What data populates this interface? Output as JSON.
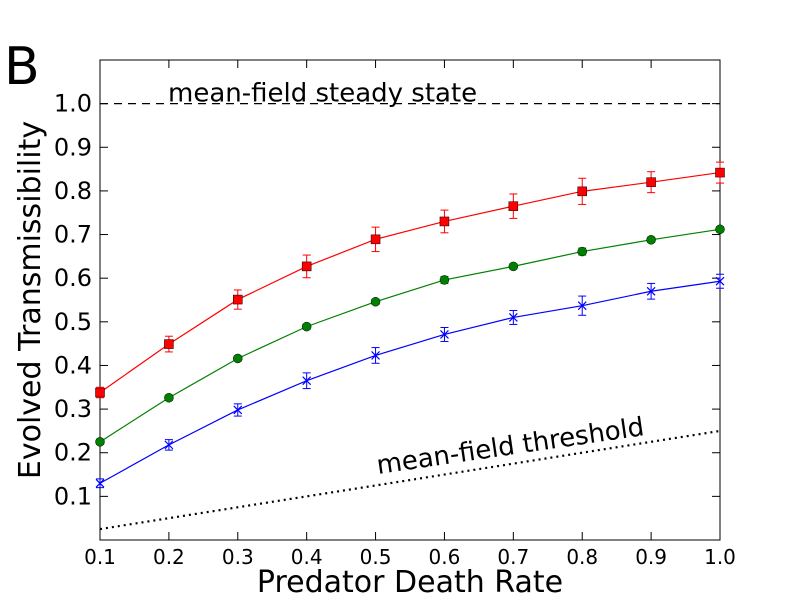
{
  "panel_label": "B",
  "chart_data": {
    "type": "line",
    "title": "",
    "xlabel": "Predator Death Rate",
    "ylabel": "Evolved Transmissibility",
    "xlim": [
      0.1,
      1.0
    ],
    "ylim": [
      0.0,
      1.1
    ],
    "x": [
      0.1,
      0.2,
      0.3,
      0.4,
      0.5,
      0.6,
      0.7,
      0.8,
      0.9,
      1.0
    ],
    "xticks": [
      "0.1",
      "0.2",
      "0.3",
      "0.4",
      "0.5",
      "0.6",
      "0.7",
      "0.8",
      "0.9",
      "1.0"
    ],
    "yticks": [
      "0.1",
      "0.2",
      "0.3",
      "0.4",
      "0.5",
      "0.6",
      "0.7",
      "0.8",
      "0.9",
      "1.0"
    ],
    "grid": false,
    "series": [
      {
        "name": "red squares",
        "color": "#ff0000",
        "marker": "square",
        "values": [
          0.338,
          0.449,
          0.551,
          0.627,
          0.689,
          0.73,
          0.765,
          0.799,
          0.82,
          0.842
        ],
        "errors": [
          0.012,
          0.018,
          0.022,
          0.026,
          0.028,
          0.026,
          0.028,
          0.03,
          0.024,
          0.024
        ]
      },
      {
        "name": "green circles",
        "color": "#008000",
        "marker": "circle",
        "values": [
          0.225,
          0.326,
          0.416,
          0.489,
          0.546,
          0.596,
          0.627,
          0.661,
          0.688,
          0.712
        ],
        "errors": [
          0.006,
          0.006,
          0.006,
          0.006,
          0.006,
          0.008,
          0.006,
          0.008,
          0.006,
          0.006
        ]
      },
      {
        "name": "blue crosses",
        "color": "#0000ff",
        "marker": "x",
        "values": [
          0.13,
          0.218,
          0.298,
          0.365,
          0.423,
          0.471,
          0.51,
          0.537,
          0.57,
          0.593
        ],
        "errors": [
          0.01,
          0.012,
          0.014,
          0.018,
          0.018,
          0.016,
          0.016,
          0.022,
          0.018,
          0.016
        ]
      }
    ],
    "reference_lines": [
      {
        "name": "mean-field steady state",
        "label": "mean-field steady state",
        "style": "dashed",
        "points": [
          [
            0.1,
            1.0
          ],
          [
            1.0,
            1.0
          ]
        ]
      },
      {
        "name": "mean-field threshold",
        "label": "mean-field threshold",
        "style": "dotted",
        "points": [
          [
            0.1,
            0.025
          ],
          [
            1.0,
            0.25
          ]
        ]
      }
    ]
  }
}
